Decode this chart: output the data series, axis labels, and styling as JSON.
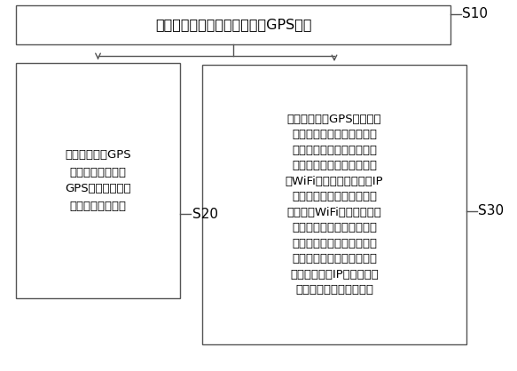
{
  "bg_color": "#ffffff",
  "box_border_color": "#555555",
  "arrow_color": "#555555",
  "title": "检测终端设备当前是否有上报GPS信息",
  "title_label": "S10",
  "box1_text": "若有上报所述GPS\n信息，则根据所述\nGPS信息定位所述\n终端设备的经纬度",
  "box1_label": "S20",
  "box2_text": "若未上报所述GPS信息，则\n根据所述终端设备的通信信\n息定位所述终端设备的经纬\n度，其中，所述通信信息包\n括WiFi信息、基站信息和IP\n归属地信息中的至少一个；\n基于所述WiFi信息确定经纬\n度的第一优先级大于基于所\n述基站信息确定经纬度的第\n二优先级；所述第二优先级\n大于基于所述IP归属地信息\n确定经纬度的第三优先级",
  "box2_label": "S30",
  "font_size_title": 11.5,
  "font_size_body": 9.5,
  "font_size_label": 11
}
